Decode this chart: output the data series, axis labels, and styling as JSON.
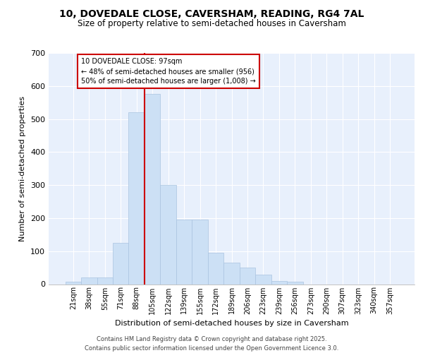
{
  "title_line1": "10, DOVEDALE CLOSE, CAVERSHAM, READING, RG4 7AL",
  "title_line2": "Size of property relative to semi-detached houses in Caversham",
  "xlabel": "Distribution of semi-detached houses by size in Caversham",
  "ylabel": "Number of semi-detached properties",
  "categories": [
    "21sqm",
    "38sqm",
    "55sqm",
    "71sqm",
    "88sqm",
    "105sqm",
    "122sqm",
    "139sqm",
    "155sqm",
    "172sqm",
    "189sqm",
    "206sqm",
    "223sqm",
    "239sqm",
    "256sqm",
    "273sqm",
    "290sqm",
    "307sqm",
    "323sqm",
    "340sqm",
    "357sqm"
  ],
  "values": [
    8,
    20,
    20,
    125,
    520,
    575,
    300,
    195,
    195,
    95,
    65,
    50,
    28,
    10,
    8,
    0,
    0,
    0,
    0,
    0,
    0
  ],
  "bar_color": "#cce0f5",
  "bar_edge_color": "#aac4e0",
  "vline_x": 4.5,
  "vline_color": "#cc0000",
  "annotation_title": "10 DOVEDALE CLOSE: 97sqm",
  "annotation_line2": "← 48% of semi-detached houses are smaller (956)",
  "annotation_line3": "50% of semi-detached houses are larger (1,008) →",
  "annotation_box_color": "#cc0000",
  "ylim": [
    0,
    700
  ],
  "yticks": [
    0,
    100,
    200,
    300,
    400,
    500,
    600,
    700
  ],
  "footer_line1": "Contains HM Land Registry data © Crown copyright and database right 2025.",
  "footer_line2": "Contains public sector information licensed under the Open Government Licence 3.0.",
  "background_color": "#ffffff",
  "plot_background_color": "#e8f0fc",
  "grid_color": "#ffffff"
}
